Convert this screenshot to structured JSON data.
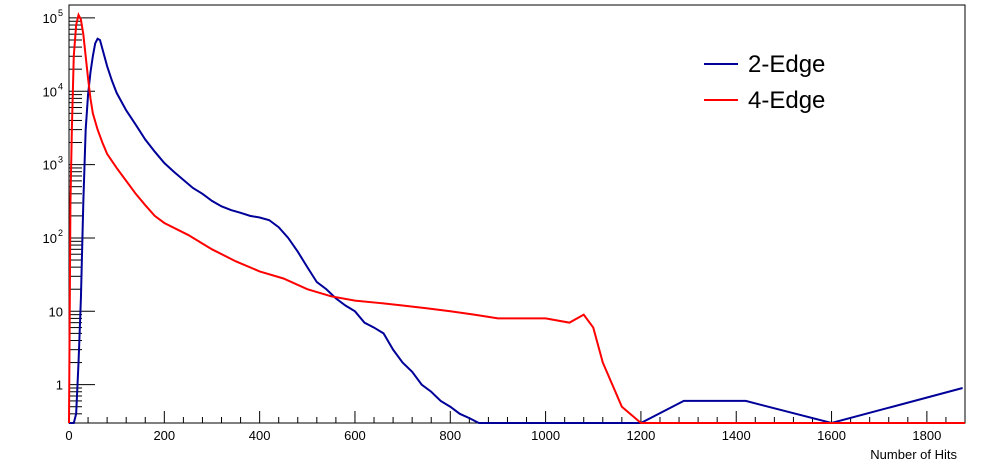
{
  "chart_data": {
    "type": "line",
    "title": "",
    "xlabel": "Number of Hits",
    "ylabel": "",
    "xlim": [
      0,
      1880
    ],
    "ylim": [
      0.3,
      150000
    ],
    "y_scale": "log",
    "grid": false,
    "legend_position": "top-right",
    "x_ticks": [
      0,
      200,
      400,
      600,
      800,
      1000,
      1200,
      1400,
      1600,
      1800
    ],
    "y_ticks": [
      {
        "value": 1,
        "label": "1",
        "exp": ""
      },
      {
        "value": 10,
        "label": "10",
        "exp": ""
      },
      {
        "value": 100,
        "label": "10",
        "exp": "2"
      },
      {
        "value": 1000,
        "label": "10",
        "exp": "3"
      },
      {
        "value": 10000,
        "label": "10",
        "exp": "4"
      },
      {
        "value": 100000,
        "label": "10",
        "exp": "5"
      }
    ],
    "series": [
      {
        "name": "2-Edge",
        "color": "#000099",
        "x": [
          0,
          5,
          10,
          15,
          20,
          25,
          30,
          35,
          40,
          45,
          50,
          55,
          60,
          65,
          70,
          80,
          90,
          100,
          120,
          140,
          160,
          180,
          200,
          220,
          240,
          260,
          280,
          300,
          320,
          340,
          360,
          380,
          400,
          420,
          440,
          460,
          480,
          500,
          520,
          540,
          560,
          580,
          600,
          620,
          640,
          660,
          680,
          700,
          720,
          740,
          760,
          780,
          800,
          820,
          840,
          860,
          880,
          900,
          1000,
          1100,
          1200,
          1290,
          1320,
          1345,
          1355,
          1420,
          1600,
          1875
        ],
        "values": [
          0,
          0,
          0,
          0.4,
          2,
          15,
          300,
          3000,
          9000,
          18000,
          30000,
          45000,
          52000,
          50000,
          38000,
          22000,
          14000,
          9500,
          5500,
          3500,
          2200,
          1500,
          1050,
          800,
          620,
          480,
          400,
          320,
          270,
          240,
          220,
          200,
          190,
          175,
          140,
          100,
          65,
          40,
          25,
          20,
          15,
          12,
          10,
          7,
          6,
          5,
          3,
          2,
          1.5,
          1,
          0.8,
          0.6,
          0.5,
          0.4,
          0.35,
          0.3,
          0,
          0.3,
          0,
          0,
          0,
          0.6,
          0.6,
          0.6,
          0.6,
          0.6,
          0,
          0.9
        ]
      },
      {
        "name": "4-Edge",
        "color": "#ff0000",
        "x": [
          0,
          3,
          6,
          10,
          15,
          20,
          25,
          30,
          35,
          40,
          45,
          50,
          60,
          70,
          80,
          100,
          120,
          140,
          160,
          180,
          200,
          250,
          300,
          350,
          400,
          450,
          500,
          550,
          600,
          650,
          700,
          750,
          800,
          850,
          900,
          950,
          1000,
          1050,
          1080,
          1100,
          1120,
          1140,
          1160,
          1200,
          1880
        ],
        "values": [
          0.3,
          300,
          3000,
          30000,
          80000,
          110000,
          95000,
          60000,
          30000,
          15000,
          8000,
          5000,
          3000,
          2000,
          1400,
          900,
          600,
          400,
          280,
          200,
          160,
          110,
          70,
          48,
          35,
          28,
          20,
          16,
          14,
          13,
          12,
          11,
          10,
          9,
          8,
          8,
          8,
          7,
          9,
          6,
          2,
          1,
          0.5,
          0,
          0
        ]
      }
    ]
  }
}
